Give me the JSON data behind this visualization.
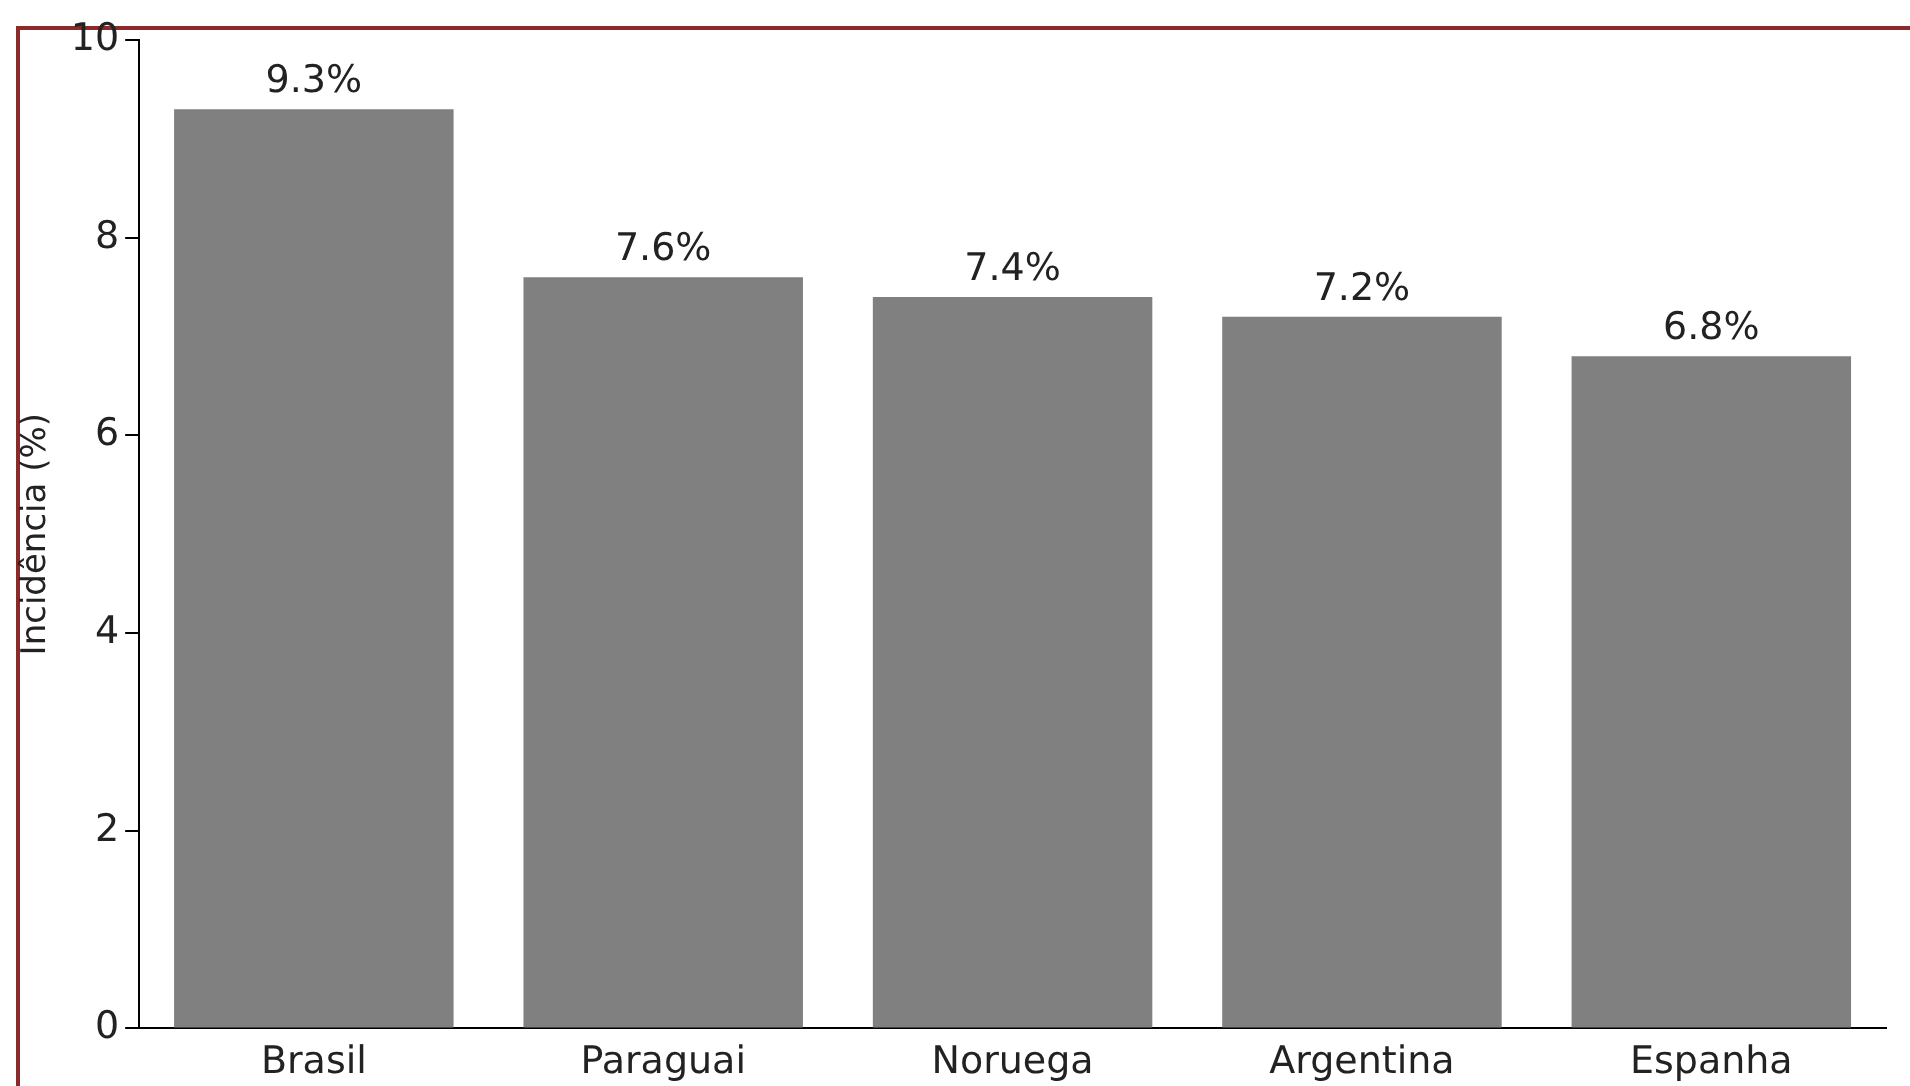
{
  "chart_data": {
    "type": "bar",
    "ylabel": "Incidência (%)",
    "categories": [
      "Brasil",
      "Paraguai",
      "Noruega",
      "Argentina",
      "Espanha"
    ],
    "values": [
      9.3,
      7.6,
      7.4,
      7.2,
      6.8
    ],
    "value_labels": [
      "9.3%",
      "7.6%",
      "7.4%",
      "7.2%",
      "6.8%"
    ],
    "color": "#808080",
    "ylim": [
      0,
      10
    ],
    "yticks": [
      0,
      2,
      4,
      6,
      8,
      10
    ],
    "grid": false,
    "legend": false
  }
}
